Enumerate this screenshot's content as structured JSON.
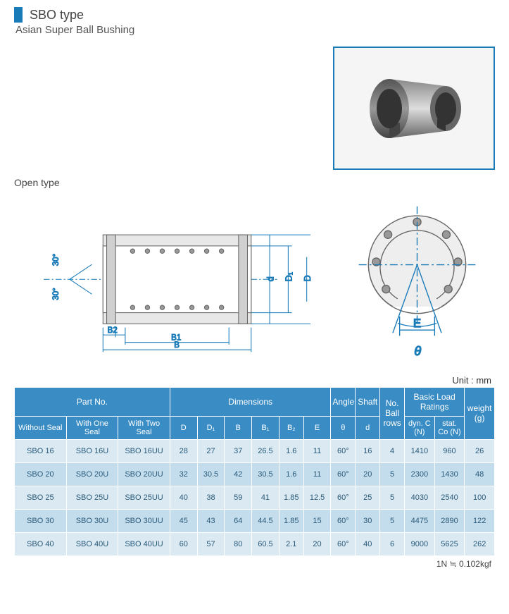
{
  "header": {
    "title": "SBO type",
    "subtitle": "Asian Super Ball Bushing"
  },
  "diagram": {
    "label": "Open type",
    "dims": {
      "D": "D",
      "D1": "D₁",
      "d": "d",
      "B": "B",
      "B1": "B1",
      "B2": "B2",
      "E": "E",
      "theta": "θ",
      "ang": "30°"
    }
  },
  "unit_label": "Unit : mm",
  "table": {
    "groups": [
      {
        "label": "Part No.",
        "span": 3
      },
      {
        "label": "Dimensions",
        "span": 6
      },
      {
        "label": "Angle",
        "span": 1
      },
      {
        "label": "Shaft",
        "span": 1
      },
      {
        "label": "No. Ball rows",
        "span": 1,
        "rowspan": 2
      },
      {
        "label": "Basic Load Ratings",
        "span": 2
      },
      {
        "label": "weight (g)",
        "span": 1,
        "rowspan": 2
      }
    ],
    "subheaders": [
      "Without Seal",
      "With One Seal",
      "With Two Seal",
      "D",
      "D₁",
      "B",
      "B₁",
      "B₂",
      "E",
      "θ",
      "d",
      "dyn. C (N)",
      "stat. Co (N)"
    ],
    "rows": [
      [
        "SBO 16",
        "SBO 16U",
        "SBO 16UU",
        "28",
        "27",
        "37",
        "26.5",
        "1.6",
        "11",
        "60°",
        "16",
        "4",
        "1410",
        "960",
        "26"
      ],
      [
        "SBO 20",
        "SBO 20U",
        "SBO 20UU",
        "32",
        "30.5",
        "42",
        "30.5",
        "1.6",
        "11",
        "60°",
        "20",
        "5",
        "2300",
        "1430",
        "48"
      ],
      [
        "SBO 25",
        "SBO 25U",
        "SBO 25UU",
        "40",
        "38",
        "59",
        "41",
        "1.85",
        "12.5",
        "60°",
        "25",
        "5",
        "4030",
        "2540",
        "100"
      ],
      [
        "SBO 30",
        "SBO 30U",
        "SBO 30UU",
        "45",
        "43",
        "64",
        "44.5",
        "1.85",
        "15",
        "60°",
        "30",
        "5",
        "4475",
        "2890",
        "122"
      ],
      [
        "SBO 40",
        "SBO 40U",
        "SBO 40UU",
        "60",
        "57",
        "80",
        "60.5",
        "2.1",
        "20",
        "60°",
        "40",
        "6",
        "9000",
        "5625",
        "262"
      ]
    ]
  },
  "footnote": "1N ≒ 0.102kgf"
}
